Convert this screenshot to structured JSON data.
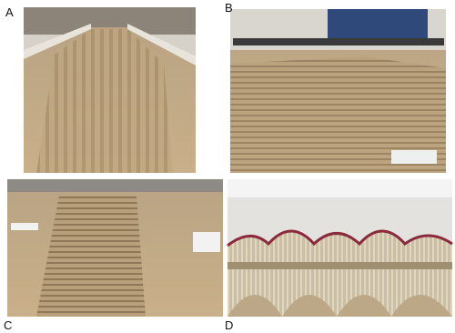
{
  "panels": [
    {
      "label": "A"
    },
    {
      "label": "B"
    },
    {
      "label": "C"
    },
    {
      "label": "D"
    }
  ]
}
